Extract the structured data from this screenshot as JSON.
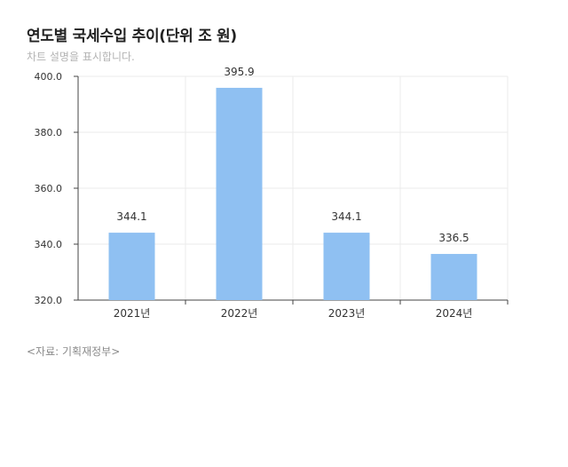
{
  "title": "연도별 국세수입 추이(단위 조 원)",
  "subtitle": "차트 설명을 표시합니다.",
  "source": "<자료: 기획재정부>",
  "colors": {
    "bar": "#8fc0f2",
    "grid": "#ebebeb",
    "axis": "#444444",
    "text": "#333333"
  },
  "chart_data": {
    "type": "bar",
    "categories": [
      "2021년",
      "2022년",
      "2023년",
      "2024년"
    ],
    "values": [
      344.1,
      395.9,
      344.1,
      336.5
    ],
    "data_labels": [
      "344.1",
      "395.9",
      "344.1",
      "336.5"
    ],
    "ylim": [
      320,
      400
    ],
    "yticks": [
      320,
      340,
      360,
      380,
      400
    ],
    "ytick_labels": [
      "320.0",
      "340.0",
      "360.0",
      "380.0",
      "400.0"
    ],
    "grid": true,
    "xlabel": "",
    "ylabel": ""
  }
}
